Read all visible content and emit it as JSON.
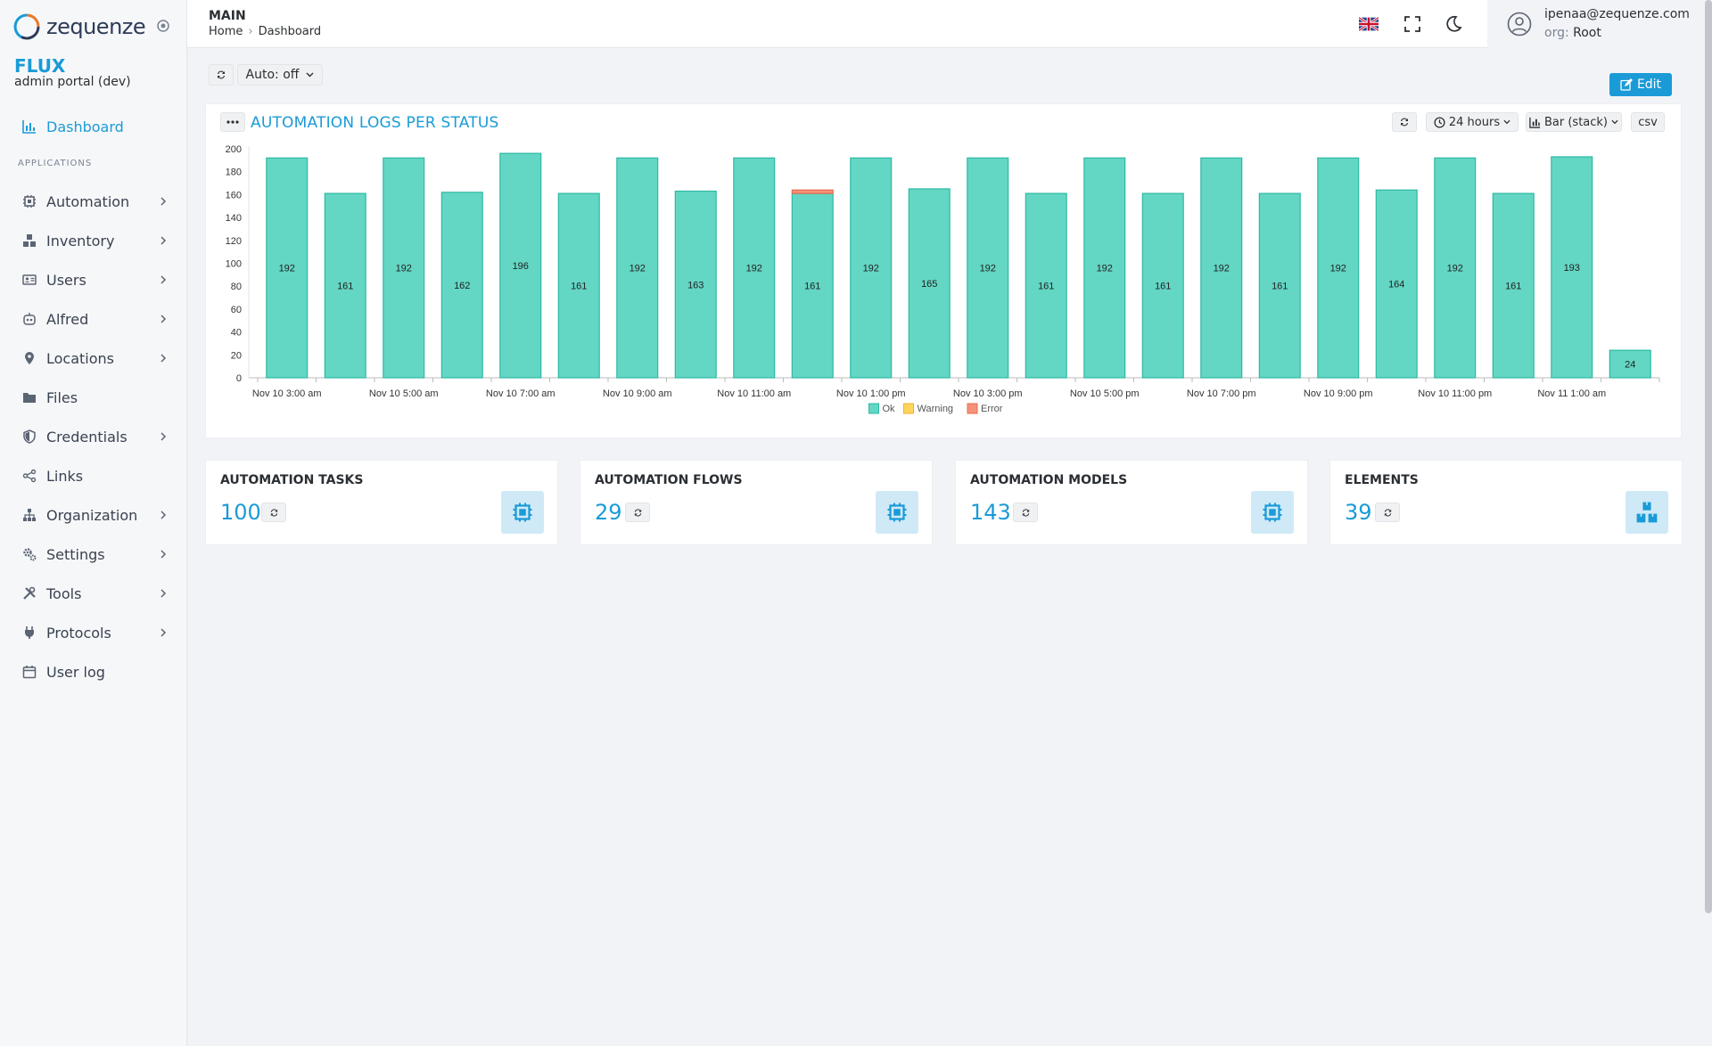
{
  "brand": {
    "logo_text": "zequenze",
    "app_name": "FLUX",
    "app_subtitle": "admin portal (dev)"
  },
  "sidebar": {
    "dashboard": "Dashboard",
    "section": "APPLICATIONS",
    "items": [
      {
        "label": "Automation",
        "icon": "cpu-icon",
        "expandable": true
      },
      {
        "label": "Inventory",
        "icon": "boxes-icon",
        "expandable": true
      },
      {
        "label": "Users",
        "icon": "id-card-icon",
        "expandable": true
      },
      {
        "label": "Alfred",
        "icon": "robot-icon",
        "expandable": true
      },
      {
        "label": "Locations",
        "icon": "map-pin-icon",
        "expandable": true
      },
      {
        "label": "Files",
        "icon": "folder-icon",
        "expandable": false
      },
      {
        "label": "Credentials",
        "icon": "shield-icon",
        "expandable": true
      },
      {
        "label": "Links",
        "icon": "share-icon",
        "expandable": false
      },
      {
        "label": "Organization",
        "icon": "sitemap-icon",
        "expandable": true
      },
      {
        "label": "Settings",
        "icon": "cogs-icon",
        "expandable": true
      },
      {
        "label": "Tools",
        "icon": "tools-icon",
        "expandable": true
      },
      {
        "label": "Protocols",
        "icon": "plug-icon",
        "expandable": true
      },
      {
        "label": "User log",
        "icon": "calendar-icon",
        "expandable": false
      }
    ]
  },
  "header": {
    "title": "MAIN",
    "breadcrumb": [
      "Home",
      "Dashboard"
    ],
    "user_email": "ipenaa@zequenze.com",
    "org_key": "org:",
    "org_value": "Root"
  },
  "toolbar": {
    "auto_label": "Auto: off",
    "edit_label": "Edit"
  },
  "chart_panel": {
    "title": "AUTOMATION LOGS PER STATUS",
    "range_label": "24 hours",
    "type_label": "Bar (stack)",
    "csv_label": "csv"
  },
  "chart_data": {
    "type": "bar",
    "stacked": true,
    "ylim": [
      0,
      200
    ],
    "yticks": [
      0,
      20,
      40,
      60,
      80,
      100,
      120,
      140,
      160,
      180,
      200
    ],
    "tick_labels": [
      "Nov 10 3:00 am",
      "Nov 10 5:00 am",
      "Nov 10 7:00 am",
      "Nov 10 9:00 am",
      "Nov 10 11:00 am",
      "Nov 10 1:00 pm",
      "Nov 10 3:00 pm",
      "Nov 10 5:00 pm",
      "Nov 10 7:00 pm",
      "Nov 10 9:00 pm",
      "Nov 10 11:00 pm",
      "Nov 11 1:00 am"
    ],
    "series": [
      {
        "name": "Ok",
        "color": "#63d6c4",
        "values": [
          192,
          161,
          192,
          162,
          196,
          161,
          192,
          163,
          192,
          161,
          192,
          165,
          192,
          161,
          192,
          161,
          192,
          161,
          192,
          164,
          192,
          161,
          193,
          24
        ]
      },
      {
        "name": "Warning",
        "color": "#ffd45c",
        "values": [
          0,
          0,
          0,
          0,
          0,
          0,
          0,
          0,
          0,
          0,
          0,
          0,
          0,
          0,
          0,
          0,
          0,
          0,
          0,
          0,
          0,
          0,
          0,
          0
        ]
      },
      {
        "name": "Error",
        "color": "#f5937a",
        "values": [
          0,
          0,
          0,
          0,
          0,
          0,
          0,
          0,
          0,
          3,
          0,
          0,
          0,
          0,
          0,
          0,
          0,
          0,
          0,
          0,
          0,
          0,
          0,
          0
        ]
      }
    ],
    "legend_position": "bottom"
  },
  "stats": [
    {
      "title": "AUTOMATION TASKS",
      "value": "100",
      "icon": "cpu-icon"
    },
    {
      "title": "AUTOMATION FLOWS",
      "value": "29",
      "icon": "cpu-icon"
    },
    {
      "title": "AUTOMATION MODELS",
      "value": "143",
      "icon": "cpu-icon"
    },
    {
      "title": "ELEMENTS",
      "value": "39",
      "icon": "boxes-icon"
    }
  ]
}
